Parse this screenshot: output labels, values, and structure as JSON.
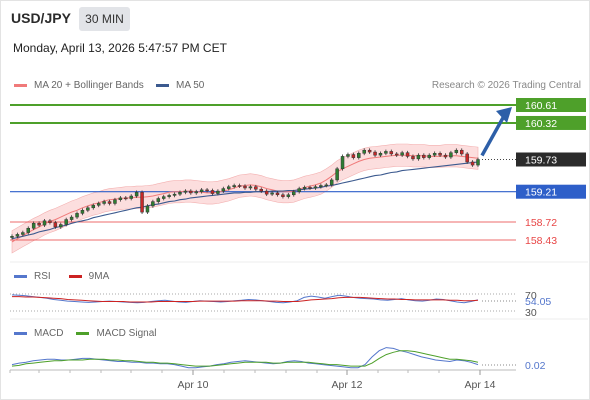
{
  "header": {
    "symbol": "USD/JPY",
    "timeframe": "30 MIN",
    "datetime": "Monday, April 13, 2026 5:47:57 PM CET"
  },
  "legend": {
    "ma20_label": "MA 20 + Bollinger Bands",
    "ma50_label": "MA 50",
    "credit": "Research © 2026 Trading Central"
  },
  "colors": {
    "green": "#4ea02a",
    "blue": "#2e5fc9",
    "red": "#e84646",
    "ma20": "#f07a7a",
    "ma50": "#3c5a8f",
    "bollinger_fill": "#fbd3d3",
    "arrow": "#2d5fa8",
    "rsi": "#5577cc",
    "rsi_ma": "#cc2222",
    "macd": "#5577cc",
    "macd_signal": "#4ea02a"
  },
  "rsi_panel": {
    "rsi_label": "RSI",
    "ma_label": "9MA",
    "value": "54.05",
    "level_top": "70",
    "level_bottom": "30"
  },
  "macd_panel": {
    "macd_label": "MACD",
    "signal_label": "MACD Signal",
    "value": "0.02"
  },
  "chart_data": [
    {
      "type": "candlestick",
      "ylim": [
        158.3,
        160.7
      ],
      "levels": [
        {
          "value": 160.61,
          "label": "160.61",
          "kind": "resistance"
        },
        {
          "value": 160.32,
          "label": "160.32",
          "kind": "resistance"
        },
        {
          "value": 159.73,
          "label": "159.73",
          "kind": "current"
        },
        {
          "value": 159.21,
          "label": "159.21",
          "kind": "pivot"
        },
        {
          "value": 158.72,
          "label": "158.72",
          "kind": "support"
        },
        {
          "value": 158.43,
          "label": "158.43",
          "kind": "support"
        }
      ],
      "x_ticks": [
        "Apr 10",
        "Apr 12",
        "Apr 14"
      ],
      "close_series": [
        158.49,
        158.52,
        158.55,
        158.62,
        158.7,
        158.67,
        158.74,
        158.71,
        158.64,
        158.68,
        158.76,
        158.8,
        158.86,
        158.91,
        158.95,
        158.99,
        159.02,
        159.05,
        159.02,
        159.08,
        159.11,
        159.1,
        159.14,
        159.2,
        158.88,
        158.98,
        159.05,
        159.1,
        159.13,
        159.15,
        159.17,
        159.2,
        159.22,
        159.19,
        159.21,
        159.24,
        159.23,
        159.18,
        159.22,
        159.26,
        159.29,
        159.31,
        159.3,
        159.27,
        159.29,
        159.25,
        159.22,
        159.17,
        159.19,
        159.16,
        159.13,
        159.16,
        159.21,
        159.26,
        159.28,
        159.27,
        159.29,
        159.31,
        159.32,
        159.4,
        159.58,
        159.78,
        159.81,
        159.76,
        159.83,
        159.88,
        159.85,
        159.8,
        159.83,
        159.86,
        159.82,
        159.8,
        159.84,
        159.78,
        159.74,
        159.8,
        159.76,
        159.8,
        159.83,
        159.8,
        159.77,
        159.84,
        159.88,
        159.82,
        159.69,
        159.64,
        159.73
      ],
      "ma20": [
        158.4,
        158.45,
        158.5,
        158.55,
        158.6,
        158.64,
        158.69,
        158.73,
        158.76,
        158.8,
        158.84,
        158.88,
        158.91,
        158.95,
        158.98,
        159.01,
        159.03,
        159.06,
        159.08,
        159.09,
        159.1,
        159.11,
        159.11,
        159.12,
        159.12,
        159.13,
        159.14,
        159.16,
        159.18,
        159.2,
        159.21,
        159.21,
        159.22,
        159.22,
        159.21,
        159.2,
        159.19,
        159.19,
        159.2,
        159.22,
        159.24,
        159.27,
        159.3,
        159.31,
        159.32,
        159.31,
        159.29,
        159.26,
        159.24,
        159.22,
        159.21,
        159.21,
        159.22,
        159.25,
        159.28,
        159.3,
        159.32,
        159.35,
        159.4,
        159.46,
        159.53,
        159.58,
        159.62,
        159.66,
        159.7,
        159.73,
        159.75,
        159.76,
        159.77,
        159.78,
        159.79,
        159.8,
        159.8,
        159.8,
        159.79,
        159.79,
        159.79,
        159.78,
        159.78,
        159.78,
        159.79,
        159.79,
        159.79,
        159.78,
        159.77,
        159.76,
        159.75
      ],
      "ma50": [
        158.45,
        158.47,
        158.49,
        158.51,
        158.53,
        158.56,
        158.58,
        158.6,
        158.63,
        158.65,
        158.67,
        158.7,
        158.72,
        158.74,
        158.76,
        158.79,
        158.81,
        158.83,
        158.85,
        158.87,
        158.89,
        158.91,
        158.93,
        158.95,
        158.96,
        158.98,
        159.0,
        159.01,
        159.03,
        159.05,
        159.06,
        159.08,
        159.09,
        159.11,
        159.12,
        159.13,
        159.14,
        159.15,
        159.16,
        159.17,
        159.18,
        159.19,
        159.19,
        159.2,
        159.2,
        159.21,
        159.21,
        159.21,
        159.22,
        159.22,
        159.22,
        159.23,
        159.23,
        159.24,
        159.25,
        159.26,
        159.27,
        159.28,
        159.3,
        159.31,
        159.33,
        159.35,
        159.37,
        159.39,
        159.41,
        159.43,
        159.45,
        159.47,
        159.48,
        159.5,
        159.52,
        159.53,
        159.55,
        159.56,
        159.57,
        159.58,
        159.59,
        159.6,
        159.61,
        159.62,
        159.63,
        159.64,
        159.65,
        159.66,
        159.67,
        159.68,
        159.69
      ],
      "bollinger_width": 0.18
    },
    {
      "type": "line",
      "title": "RSI",
      "series": [
        {
          "name": "RSI",
          "values": [
            66,
            65,
            64,
            62,
            60,
            58,
            55,
            53,
            51,
            50,
            49,
            48,
            49,
            50,
            51,
            50,
            49,
            48,
            47,
            48,
            50,
            52,
            53,
            51,
            49,
            48,
            50,
            52,
            51,
            50,
            49,
            50,
            52,
            53,
            55,
            54,
            52,
            50,
            48,
            47,
            49,
            52,
            60,
            63,
            61,
            58,
            62,
            65,
            63,
            60,
            58,
            57,
            56,
            54,
            53,
            55,
            57,
            54,
            52,
            51,
            53,
            56,
            55,
            52,
            49,
            47,
            50,
            54
          ]
        },
        {
          "name": "9MA",
          "values": [
            62,
            62,
            61,
            61,
            60,
            59,
            58,
            57,
            55,
            54,
            53,
            52,
            51,
            50,
            50,
            50,
            50,
            49,
            49,
            49,
            49,
            50,
            50,
            50,
            50,
            50,
            50,
            51,
            51,
            51,
            51,
            51,
            51,
            52,
            52,
            52,
            52,
            51,
            51,
            50,
            50,
            50,
            52,
            54,
            55,
            56,
            57,
            59,
            60,
            60,
            60,
            59,
            58,
            57,
            56,
            56,
            55,
            55,
            54,
            54,
            54,
            54,
            54,
            53,
            53,
            52,
            52,
            53
          ]
        }
      ]
    },
    {
      "type": "line",
      "title": "MACD",
      "series": [
        {
          "name": "MACD",
          "values": [
            0.02,
            0.04,
            0.05,
            0.07,
            0.08,
            0.09,
            0.09,
            0.08,
            0.08,
            0.09,
            0.1,
            0.1,
            0.09,
            0.08,
            0.07,
            0.06,
            0.06,
            0.05,
            0.05,
            0.04,
            0.04,
            0.03,
            0.03,
            0.02,
            0.0,
            -0.02,
            -0.02,
            -0.01,
            0.0,
            0.02,
            0.03,
            0.05,
            0.06,
            0.07,
            0.06,
            0.05,
            0.04,
            0.03,
            0.04,
            0.06,
            0.07,
            0.06,
            0.04,
            0.03,
            0.02,
            0.01,
            0.0,
            -0.01,
            -0.02,
            -0.02,
            0.02,
            0.12,
            0.2,
            0.24,
            0.23,
            0.2,
            0.18,
            0.15,
            0.12,
            0.1,
            0.08,
            0.07,
            0.06,
            0.08,
            0.07,
            0.05,
            0.02
          ]
        },
        {
          "name": "MACD Signal",
          "values": [
            0.0,
            0.01,
            0.03,
            0.04,
            0.05,
            0.06,
            0.07,
            0.07,
            0.08,
            0.08,
            0.08,
            0.09,
            0.09,
            0.09,
            0.08,
            0.08,
            0.07,
            0.07,
            0.06,
            0.05,
            0.05,
            0.04,
            0.04,
            0.03,
            0.02,
            0.01,
            0.0,
            0.0,
            0.0,
            0.01,
            0.02,
            0.03,
            0.04,
            0.05,
            0.05,
            0.05,
            0.05,
            0.04,
            0.04,
            0.05,
            0.05,
            0.05,
            0.05,
            0.04,
            0.03,
            0.02,
            0.02,
            0.01,
            0.0,
            0.0,
            0.0,
            0.04,
            0.1,
            0.15,
            0.18,
            0.2,
            0.2,
            0.19,
            0.17,
            0.15,
            0.13,
            0.11,
            0.09,
            0.09,
            0.08,
            0.07,
            0.05
          ]
        }
      ]
    }
  ]
}
